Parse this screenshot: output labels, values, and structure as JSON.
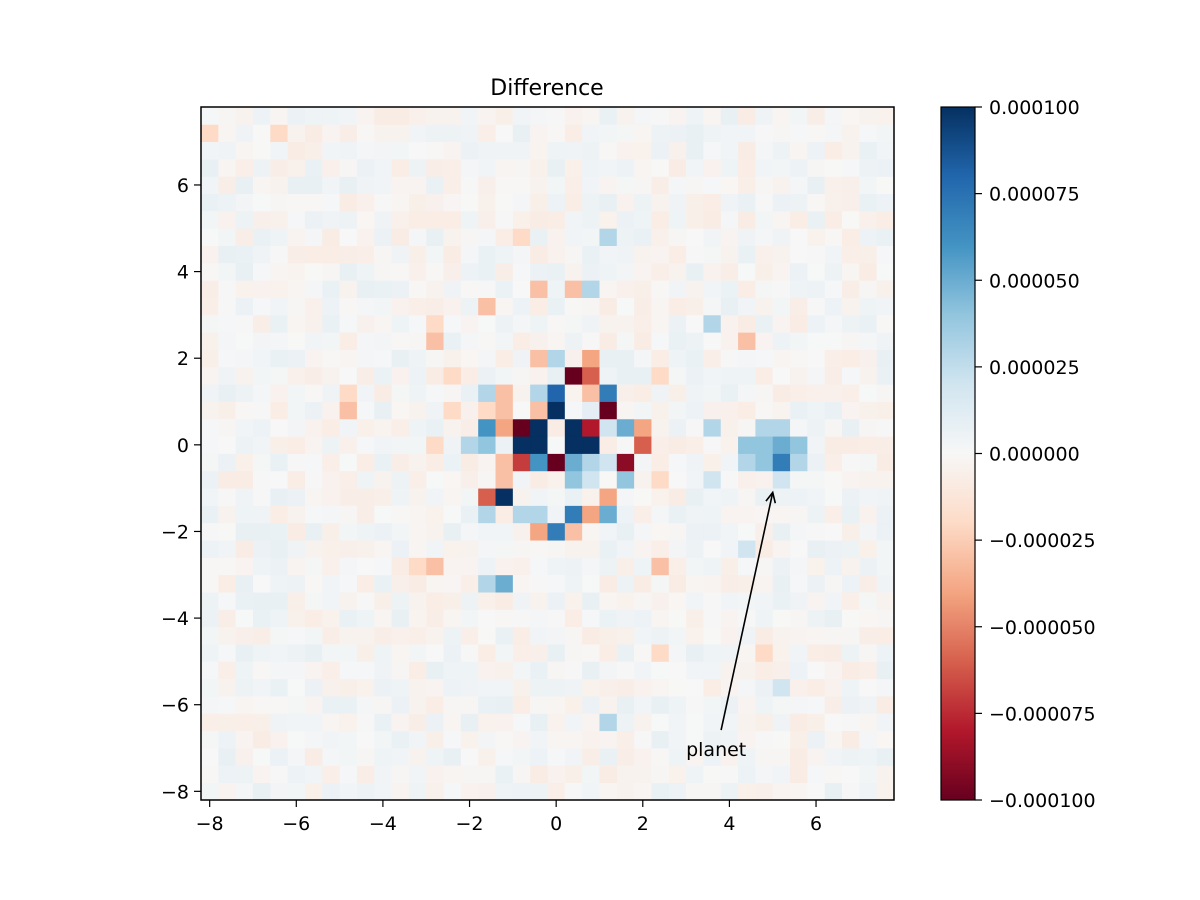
{
  "chart_data": {
    "type": "heatmap",
    "title": "Difference",
    "xlabel": "",
    "ylabel": "",
    "xlim": [
      -8.2,
      7.8
    ],
    "ylim": [
      -8.2,
      7.8
    ],
    "pixel_scale": 0.4,
    "x_ticks": [
      -8,
      -6,
      -4,
      -2,
      0,
      2,
      4,
      6
    ],
    "y_ticks": [
      -8,
      -6,
      -4,
      -2,
      0,
      2,
      4,
      6
    ],
    "x_tick_labels": [
      "−8",
      "−6",
      "−4",
      "−2",
      "0",
      "2",
      "4",
      "6"
    ],
    "y_tick_labels": [
      "−8",
      "−6",
      "−4",
      "−2",
      "0",
      "2",
      "4",
      "6"
    ],
    "colormap": "RdBu",
    "color_range": [
      -0.0001,
      0.0001
    ],
    "colorbar_ticks": [
      0.0001,
      7.5e-05,
      5e-05,
      2.5e-05,
      0.0,
      -2.5e-05,
      -5e-05,
      -7.5e-05,
      -0.0001
    ],
    "colorbar_tick_labels": [
      "0.000100",
      "0.000075",
      "0.000050",
      "0.000025",
      "0.000000",
      "−0.000025",
      "−0.000050",
      "−0.000075",
      "−0.000100"
    ],
    "grid": false,
    "background_noise_amplitude": 8e-06,
    "pixels": [
      {
        "x": -0.4,
        "y": 0.8,
        "v": -3e-05
      },
      {
        "x": 0.0,
        "y": 0.8,
        "v": 0.0001
      },
      {
        "x": -0.8,
        "y": 0.4,
        "v": -0.0001
      },
      {
        "x": -0.4,
        "y": 0.4,
        "v": 0.0001
      },
      {
        "x": 0.4,
        "y": 0.4,
        "v": 0.0001
      },
      {
        "x": 0.8,
        "y": 0.4,
        "v": -8e-05
      },
      {
        "x": -0.8,
        "y": 0.0,
        "v": 0.0001
      },
      {
        "x": -0.4,
        "y": 0.0,
        "v": 0.0001
      },
      {
        "x": 0.4,
        "y": 0.0,
        "v": 0.0001
      },
      {
        "x": 0.8,
        "y": 0.0,
        "v": 0.0001
      },
      {
        "x": -0.4,
        "y": -0.4,
        "v": 6e-05
      },
      {
        "x": 0.0,
        "y": -0.4,
        "v": -0.0001
      },
      {
        "x": 0.4,
        "y": -0.4,
        "v": 5e-05
      },
      {
        "x": 0.8,
        "y": -0.4,
        "v": 3e-05
      },
      {
        "x": 0.0,
        "y": 1.2,
        "v": 8e-05
      },
      {
        "x": 0.4,
        "y": 1.6,
        "v": -0.0001
      },
      {
        "x": 0.8,
        "y": 1.6,
        "v": -6e-05
      },
      {
        "x": 1.2,
        "y": 1.2,
        "v": 7e-05
      },
      {
        "x": 1.2,
        "y": 0.8,
        "v": -0.0001
      },
      {
        "x": 1.6,
        "y": 0.4,
        "v": 5e-05
      },
      {
        "x": 2.0,
        "y": 0.4,
        "v": -4e-05
      },
      {
        "x": 2.0,
        "y": 0.0,
        "v": -6e-05
      },
      {
        "x": 1.6,
        "y": -0.4,
        "v": -9e-05
      },
      {
        "x": 1.6,
        "y": -0.8,
        "v": 4e-05
      },
      {
        "x": 1.2,
        "y": -1.2,
        "v": -4e-05
      },
      {
        "x": 1.2,
        "y": -1.6,
        "v": 5e-05
      },
      {
        "x": 0.8,
        "y": -1.6,
        "v": -4e-05
      },
      {
        "x": 0.4,
        "y": -1.6,
        "v": 7e-05
      },
      {
        "x": -0.8,
        "y": 0.8,
        "v": 0.0
      },
      {
        "x": -1.2,
        "y": 0.4,
        "v": -4e-05
      },
      {
        "x": -1.6,
        "y": 0.4,
        "v": 6e-05
      },
      {
        "x": -1.6,
        "y": 0.0,
        "v": 4e-05
      },
      {
        "x": -2.0,
        "y": 0.0,
        "v": 3e-05
      },
      {
        "x": -1.2,
        "y": -0.4,
        "v": -3e-05
      },
      {
        "x": -0.8,
        "y": -0.4,
        "v": -7e-05
      },
      {
        "x": -1.2,
        "y": -0.8,
        "v": -3e-05
      },
      {
        "x": -1.2,
        "y": -1.2,
        "v": 0.0001
      },
      {
        "x": -1.6,
        "y": -1.2,
        "v": -6e-05
      },
      {
        "x": -1.6,
        "y": -1.6,
        "v": 3e-05
      },
      {
        "x": -0.8,
        "y": -1.6,
        "v": 3e-05
      },
      {
        "x": -0.4,
        "y": -2.0,
        "v": -4e-05
      },
      {
        "x": 0.0,
        "y": -2.0,
        "v": 7e-05
      },
      {
        "x": 0.4,
        "y": -2.0,
        "v": -3e-05
      },
      {
        "x": -0.4,
        "y": -1.6,
        "v": 3e-05
      },
      {
        "x": 0.4,
        "y": -0.8,
        "v": 4e-05
      },
      {
        "x": 0.8,
        "y": -0.8,
        "v": 2e-05
      },
      {
        "x": -0.4,
        "y": 1.2,
        "v": 3e-05
      },
      {
        "x": -1.2,
        "y": 1.2,
        "v": -3e-05
      },
      {
        "x": -1.6,
        "y": 1.2,
        "v": 3e-05
      },
      {
        "x": -1.2,
        "y": 0.8,
        "v": -3e-05
      },
      {
        "x": -1.6,
        "y": 0.8,
        "v": -2e-05
      },
      {
        "x": 1.2,
        "y": 0.4,
        "v": 2e-05
      },
      {
        "x": 1.2,
        "y": -0.4,
        "v": 2e-05
      },
      {
        "x": 0.8,
        "y": 0.8,
        "v": 1e-05
      },
      {
        "x": 0.8,
        "y": 1.2,
        "v": -3e-05
      },
      {
        "x": -0.4,
        "y": 2.0,
        "v": -3e-05
      },
      {
        "x": 0.0,
        "y": 2.0,
        "v": 3e-05
      },
      {
        "x": 0.8,
        "y": 2.0,
        "v": -4e-05
      },
      {
        "x": -2.8,
        "y": 2.4,
        "v": -3e-05
      },
      {
        "x": -2.8,
        "y": 0.0,
        "v": -2e-05
      },
      {
        "x": -2.4,
        "y": 1.6,
        "v": -2e-05
      },
      {
        "x": -2.4,
        "y": 0.8,
        "v": -2e-05
      },
      {
        "x": 2.4,
        "y": 1.6,
        "v": -2e-05
      },
      {
        "x": -1.2,
        "y": -3.2,
        "v": 5e-05
      },
      {
        "x": -1.6,
        "y": -3.2,
        "v": 3e-05
      },
      {
        "x": -2.8,
        "y": -2.8,
        "v": -3e-05
      },
      {
        "x": -3.2,
        "y": -2.8,
        "v": -2e-05
      },
      {
        "x": 1.2,
        "y": 4.8,
        "v": 3e-05
      },
      {
        "x": -0.8,
        "y": 4.8,
        "v": -2e-05
      },
      {
        "x": -0.4,
        "y": 3.6,
        "v": -3e-05
      },
      {
        "x": 0.4,
        "y": 3.6,
        "v": -3e-05
      },
      {
        "x": 0.8,
        "y": 3.6,
        "v": 3e-05
      },
      {
        "x": -1.6,
        "y": 3.2,
        "v": -3e-05
      },
      {
        "x": -2.8,
        "y": 2.8,
        "v": -2e-05
      },
      {
        "x": 4.4,
        "y": 2.4,
        "v": -3e-05
      },
      {
        "x": 3.6,
        "y": 2.8,
        "v": 3e-05
      },
      {
        "x": 2.4,
        "y": -0.8,
        "v": -2e-05
      },
      {
        "x": 2.4,
        "y": -2.8,
        "v": -3e-05
      },
      {
        "x": -4.8,
        "y": 1.2,
        "v": -2e-05
      },
      {
        "x": -4.8,
        "y": 0.8,
        "v": -3e-05
      },
      {
        "x": 4.4,
        "y": -2.4,
        "v": 2e-05
      },
      {
        "x": 3.6,
        "y": -0.8,
        "v": 2e-05
      },
      {
        "x": 3.6,
        "y": 0.4,
        "v": 3e-05
      },
      {
        "x": 4.8,
        "y": 0.4,
        "v": 3e-05
      },
      {
        "x": 5.2,
        "y": 0.4,
        "v": 3e-05
      },
      {
        "x": 4.4,
        "y": 0.0,
        "v": 4e-05
      },
      {
        "x": 4.8,
        "y": 0.0,
        "v": 4e-05
      },
      {
        "x": 5.2,
        "y": 0.0,
        "v": 5e-05
      },
      {
        "x": 5.6,
        "y": 0.0,
        "v": 4e-05
      },
      {
        "x": 4.4,
        "y": -0.4,
        "v": 3e-05
      },
      {
        "x": 4.8,
        "y": -0.4,
        "v": 4e-05
      },
      {
        "x": 5.2,
        "y": -0.4,
        "v": 7e-05
      },
      {
        "x": 5.6,
        "y": -0.4,
        "v": 3e-05
      },
      {
        "x": 5.2,
        "y": -0.8,
        "v": 2e-05
      },
      {
        "x": 1.2,
        "y": -6.4,
        "v": 3e-05
      },
      {
        "x": 2.4,
        "y": -4.8,
        "v": -2e-05
      },
      {
        "x": 4.8,
        "y": -4.8,
        "v": -2e-05
      },
      {
        "x": 5.2,
        "y": -5.6,
        "v": 2e-05
      },
      {
        "x": -8.0,
        "y": 7.2,
        "v": -2e-05
      },
      {
        "x": -6.4,
        "y": 7.2,
        "v": -2e-05
      }
    ],
    "annotations": [
      {
        "text": "planet",
        "text_x": 3.0,
        "text_y": -7.0,
        "arrow_to": [
          5.0,
          -1.1
        ]
      }
    ]
  }
}
